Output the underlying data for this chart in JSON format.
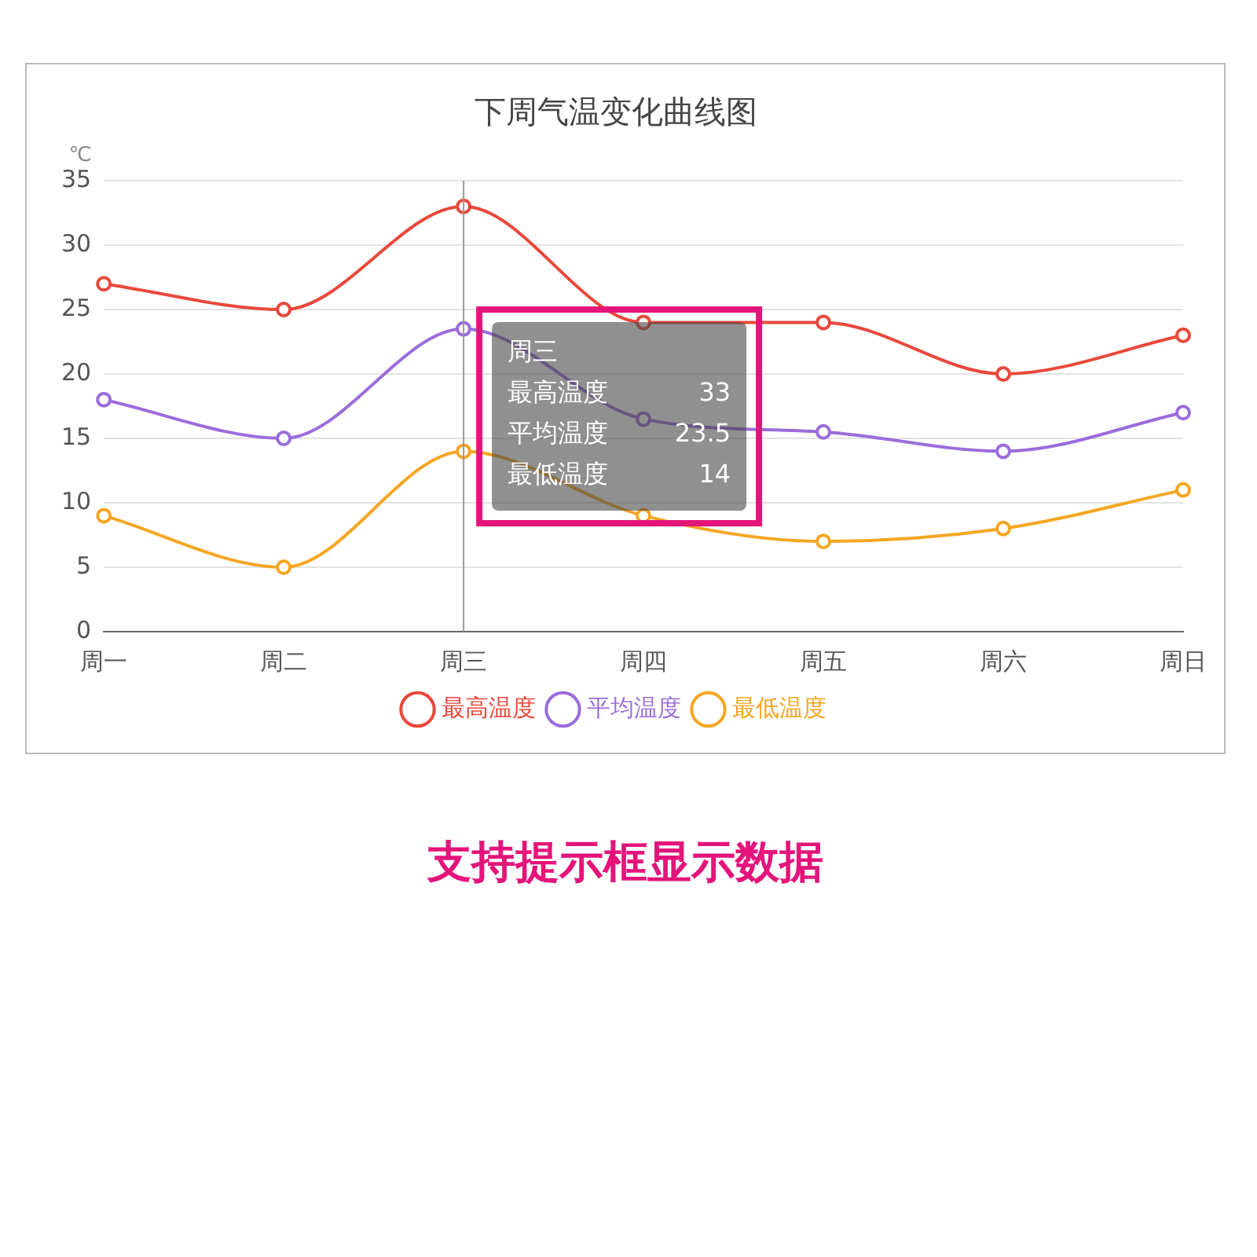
{
  "chart_data": {
    "type": "line",
    "title": "下周气温变化曲线图",
    "ylabel": "℃",
    "categories": [
      "周一",
      "周二",
      "周三",
      "周四",
      "周五",
      "周六",
      "周日"
    ],
    "series": [
      {
        "name": "最高温度",
        "color": "#e8483b",
        "values": [
          27,
          25,
          33,
          24,
          24,
          20,
          23
        ]
      },
      {
        "name": "平均温度",
        "color": "#9b6ddb",
        "values": [
          18,
          15,
          23.5,
          16.5,
          15.5,
          14,
          17
        ]
      },
      {
        "name": "最低温度",
        "color": "#f5a623",
        "values": [
          9,
          5,
          14,
          9,
          7,
          8,
          11
        ]
      }
    ],
    "ylim": [
      0,
      35
    ],
    "yticks": [
      0,
      5,
      10,
      15,
      20,
      25,
      30,
      35
    ],
    "grid": "y",
    "legend": "bottom",
    "marker": "circle",
    "line_style": "solid",
    "ref_lines": [
      {
        "axis": "x",
        "value": "周三",
        "color": "#999999"
      }
    ],
    "annotations": [
      "周三",
      "最高温度 33",
      "平均温度 23.5",
      "最低温度 14",
      "支持提示框显示数据"
    ]
  }
}
